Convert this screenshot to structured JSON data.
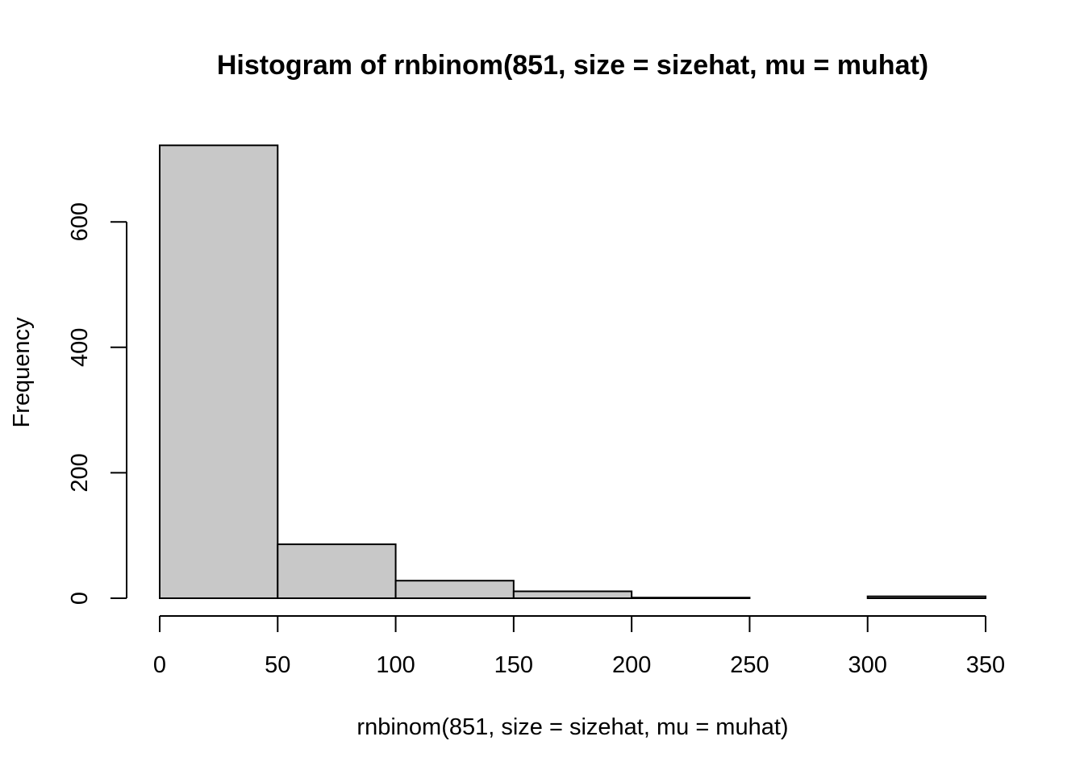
{
  "chart_data": {
    "type": "bar",
    "subtype": "histogram",
    "title": "Histogram of rnbinom(851, size = sizehat, mu = muhat)",
    "xlabel": "rnbinom(851, size = sizehat, mu = muhat)",
    "ylabel": "Frequency",
    "bins": [
      {
        "start": 0,
        "end": 50,
        "count": 722
      },
      {
        "start": 50,
        "end": 100,
        "count": 86
      },
      {
        "start": 100,
        "end": 150,
        "count": 28
      },
      {
        "start": 150,
        "end": 200,
        "count": 11
      },
      {
        "start": 200,
        "end": 250,
        "count": 1
      },
      {
        "start": 250,
        "end": 300,
        "count": 0
      },
      {
        "start": 300,
        "end": 350,
        "count": 3
      }
    ],
    "x_ticks": [
      0,
      50,
      100,
      150,
      200,
      250,
      300,
      350
    ],
    "y_ticks": [
      0,
      200,
      400,
      600
    ],
    "xlim": [
      0,
      350
    ],
    "ylim": [
      0,
      722
    ],
    "bar_fill": "#c8c8c8",
    "bar_stroke": "#000000",
    "grid": false,
    "legend": "none"
  }
}
